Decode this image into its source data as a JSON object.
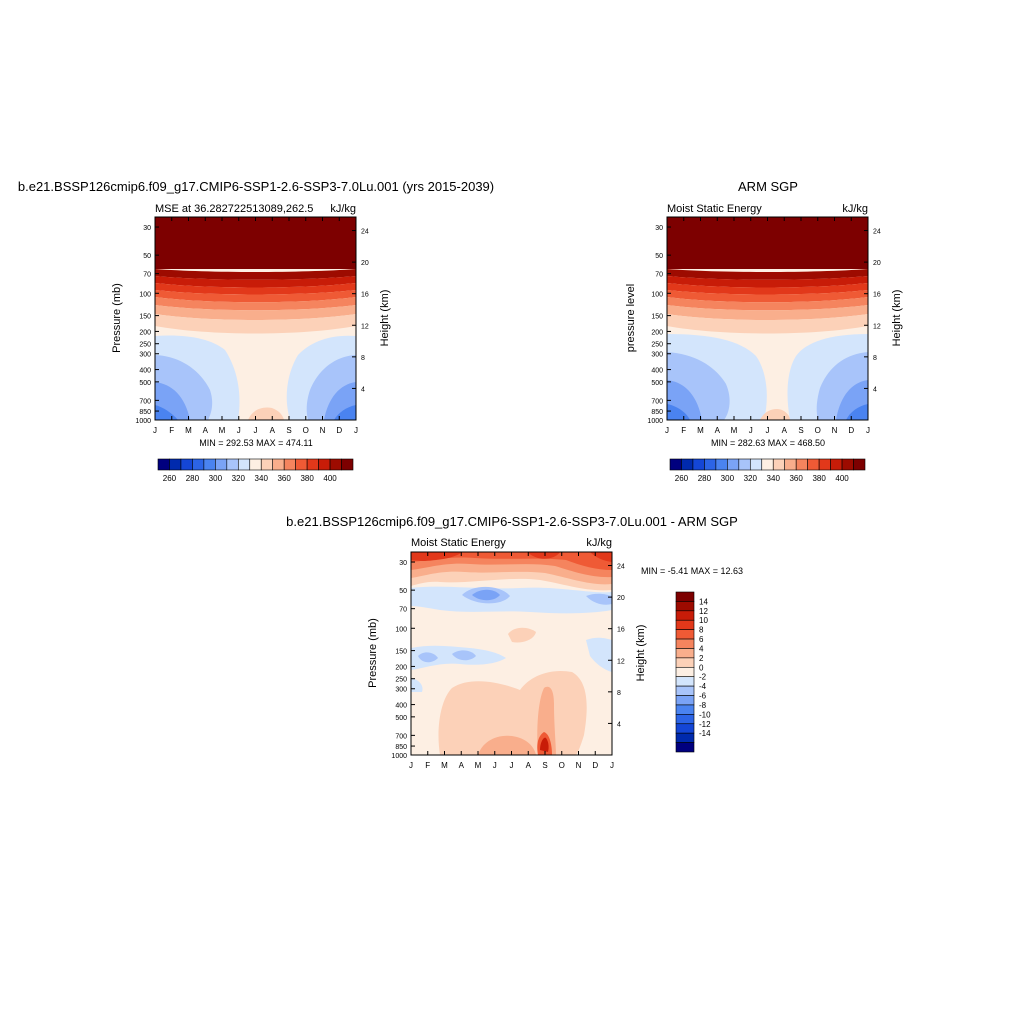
{
  "palette": [
    "#00007f",
    "#002aad",
    "#1446d6",
    "#2c64e6",
    "#4a83f0",
    "#7aa3f6",
    "#a8c4fa",
    "#d3e5fc",
    "#fdefe3",
    "#fcd1b8",
    "#f9ae8c",
    "#f5845e",
    "#ef5a35",
    "#e2381a",
    "#c81c08",
    "#9d0b00",
    "#7d0000"
  ],
  "chart_data": [
    {
      "type": "heatmap",
      "title": "b.e21.BSSP126cmip6.f09_g17.CMIP6-SSP1-2.6-SSP3-7.0Lu.001 (yrs 2015-2039)",
      "left_subtitle": "MSE at 36.282722513089,262.5",
      "right_subtitle": "kJ/kg",
      "ylabel": "Pressure (mb)",
      "y2label": "Height (km)",
      "x_ticks": [
        "J",
        "F",
        "M",
        "A",
        "M",
        "J",
        "J",
        "A",
        "S",
        "O",
        "N",
        "D",
        "J"
      ],
      "y_ticks": [
        "30",
        "50",
        "70",
        "100",
        "150",
        "200",
        "250",
        "300",
        "400",
        "500",
        "700",
        "850",
        "1000"
      ],
      "y2_ticks": [
        "24",
        "20",
        "16",
        "12",
        "8",
        "4"
      ],
      "minmax": "MIN = 292.53 MAX = 474.11",
      "colorbar_labels": [
        "260",
        "280",
        "300",
        "320",
        "340",
        "360",
        "380",
        "400"
      ]
    },
    {
      "type": "heatmap",
      "title": "ARM SGP",
      "left_subtitle": "Moist Static Energy",
      "right_subtitle": "kJ/kg",
      "ylabel": "pressure level",
      "y2label": "Height (km)",
      "x_ticks": [
        "J",
        "F",
        "M",
        "A",
        "M",
        "J",
        "J",
        "A",
        "S",
        "O",
        "N",
        "D",
        "J"
      ],
      "y_ticks": [
        "30",
        "50",
        "70",
        "100",
        "150",
        "200",
        "250",
        "300",
        "400",
        "500",
        "700",
        "850",
        "1000"
      ],
      "y2_ticks": [
        "24",
        "20",
        "16",
        "12",
        "8",
        "4"
      ],
      "minmax": "MIN = 282.63 MAX = 468.50",
      "colorbar_labels": [
        "260",
        "280",
        "300",
        "320",
        "340",
        "360",
        "380",
        "400"
      ]
    },
    {
      "type": "heatmap",
      "title": "b.e21.BSSP126cmip6.f09_g17.CMIP6-SSP1-2.6-SSP3-7.0Lu.001 - ARM SGP",
      "left_subtitle": "Moist Static Energy",
      "right_subtitle": "kJ/kg",
      "ylabel": "Pressure (mb)",
      "y2label": "Height (km)",
      "x_ticks": [
        "J",
        "F",
        "M",
        "A",
        "M",
        "J",
        "J",
        "A",
        "S",
        "O",
        "N",
        "D",
        "J"
      ],
      "y_ticks": [
        "30",
        "50",
        "70",
        "100",
        "150",
        "200",
        "250",
        "300",
        "400",
        "500",
        "700",
        "850",
        "1000"
      ],
      "y2_ticks": [
        "24",
        "20",
        "16",
        "12",
        "8",
        "4"
      ],
      "minmax": "MIN =  -5.41 MAX =  12.63",
      "colorbar_labels": [
        "14",
        "12",
        "10",
        "8",
        "6",
        "4",
        "2",
        "0",
        "-2",
        "-4",
        "-6",
        "-8",
        "-10",
        "-12",
        "-14"
      ]
    }
  ]
}
